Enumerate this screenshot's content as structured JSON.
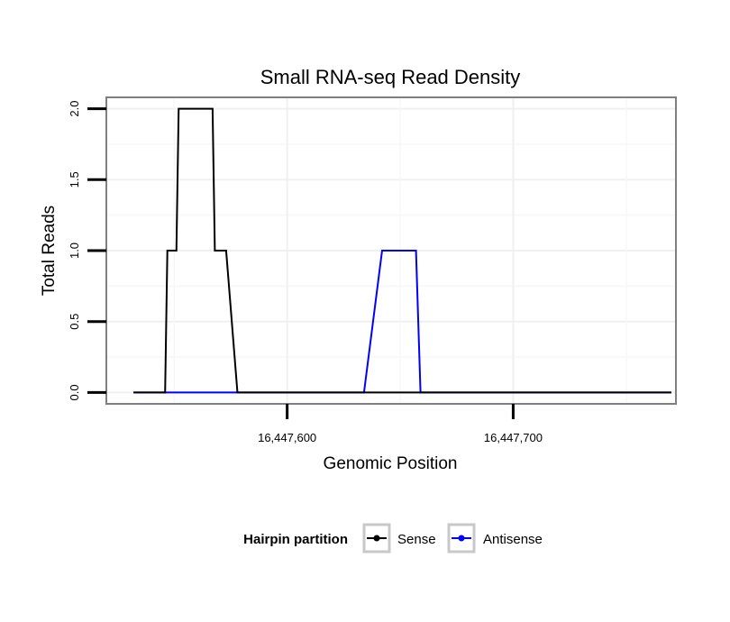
{
  "chart_data": {
    "type": "line",
    "title": "Small RNA-seq Read Density",
    "xlabel": "Genomic Position",
    "ylabel": "Total Reads",
    "xlim": [
      16447520,
      16447772
    ],
    "ylim": [
      -0.08,
      2.08
    ],
    "x_ticks": [
      {
        "value": 16447600,
        "label": "16,447,600"
      },
      {
        "value": 16447700,
        "label": "16,447,700"
      }
    ],
    "y_ticks": [
      {
        "value": 0.0,
        "label": "0.0"
      },
      {
        "value": 0.5,
        "label": "0.5"
      },
      {
        "value": 1.0,
        "label": "1.0"
      },
      {
        "value": 1.5,
        "label": "1.5"
      },
      {
        "value": 2.0,
        "label": "2.0"
      }
    ],
    "grid": true,
    "legend": {
      "title": "Hairpin partition",
      "position": "bottom",
      "entries": [
        {
          "name": "Sense",
          "color": "#000000"
        },
        {
          "name": "Antisense",
          "color": "#0000ff"
        }
      ]
    },
    "series": [
      {
        "name": "Antisense",
        "color": "#0000ff",
        "x": [
          16447532,
          16447546,
          16447552,
          16447556,
          16447561,
          16447567,
          16447571,
          16447577,
          16447634,
          16447642,
          16447644,
          16447657,
          16447659,
          16447770
        ],
        "values": [
          0,
          0,
          0,
          0,
          0,
          0,
          0,
          0,
          0,
          1,
          1,
          1,
          0,
          0
        ]
      },
      {
        "name": "Sense",
        "color": "#000000",
        "x": [
          16447532,
          16447546,
          16447547,
          16447551,
          16447552,
          16447567,
          16447568,
          16447572,
          16447573,
          16447578,
          16447770
        ],
        "values": [
          0,
          0,
          1,
          1,
          2,
          2,
          1,
          1,
          1,
          0,
          0
        ]
      }
    ]
  }
}
